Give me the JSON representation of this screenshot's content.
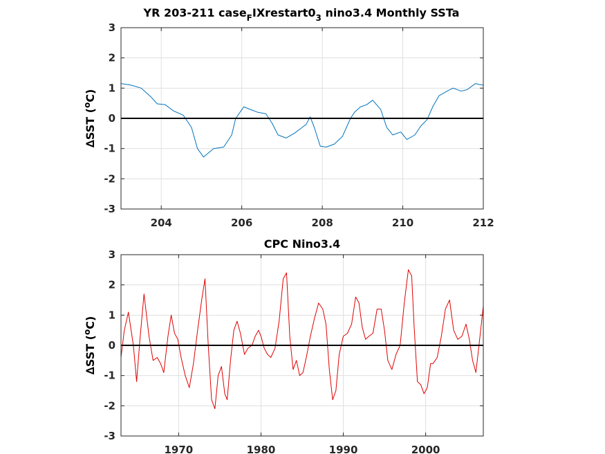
{
  "figure": {
    "background": "#ffffff",
    "axes_color": "#262626",
    "grid_color": "#dfdfdf",
    "zero_line_color": "#000000"
  },
  "chart_data": [
    {
      "type": "line",
      "title_parts": [
        "YR 203-211 case",
        "F",
        "IXrestart0",
        "3",
        " nino3.4 Monthly SSTa"
      ],
      "ylabel_symbol": "∆",
      "ylabel_text": "SST (",
      "ylabel_degree": "o",
      "ylabel_unit": "C)",
      "xlim": [
        203,
        212
      ],
      "ylim": [
        -3,
        3
      ],
      "xticks": [
        204,
        206,
        208,
        210,
        212
      ],
      "yticks": [
        -3,
        -2,
        -1,
        0,
        1,
        2,
        3
      ],
      "grid": true,
      "zero_line": true,
      "series": [
        {
          "color": "#0072bd",
          "x": [
            203.0,
            203.25,
            203.5,
            203.75,
            203.9,
            204.1,
            204.3,
            204.55,
            204.75,
            204.9,
            205.05,
            205.3,
            205.55,
            205.75,
            205.85,
            206.05,
            206.2,
            206.4,
            206.6,
            206.75,
            206.9,
            207.1,
            207.3,
            207.5,
            207.6,
            207.7,
            207.8,
            207.95,
            208.1,
            208.3,
            208.5,
            208.7,
            208.8,
            208.95,
            209.1,
            209.25,
            209.45,
            209.6,
            209.75,
            209.95,
            210.1,
            210.3,
            210.45,
            210.6,
            210.75,
            210.9,
            211.1,
            211.25,
            211.45,
            211.6,
            211.8,
            211.9,
            212.0
          ],
          "y": [
            1.15,
            1.1,
            1.0,
            0.7,
            0.48,
            0.45,
            0.25,
            0.1,
            -0.3,
            -1.0,
            -1.28,
            -1.0,
            -0.95,
            -0.55,
            0.0,
            0.38,
            0.3,
            0.2,
            0.15,
            -0.15,
            -0.55,
            -0.65,
            -0.5,
            -0.3,
            -0.2,
            0.05,
            -0.3,
            -0.92,
            -0.95,
            -0.85,
            -0.6,
            0.0,
            0.2,
            0.38,
            0.45,
            0.6,
            0.3,
            -0.3,
            -0.55,
            -0.45,
            -0.7,
            -0.55,
            -0.25,
            -0.05,
            0.4,
            0.75,
            0.9,
            1.0,
            0.9,
            0.95,
            1.15,
            1.12,
            1.1
          ]
        }
      ]
    },
    {
      "type": "line",
      "title": "CPC Nino3.4",
      "ylabel_symbol": "∆",
      "ylabel_text": "SST (",
      "ylabel_degree": "o",
      "ylabel_unit": "C)",
      "xlim": [
        1963,
        2007
      ],
      "ylim": [
        -3,
        3
      ],
      "xticks": [
        1970,
        1980,
        1990,
        2000
      ],
      "yticks": [
        -3,
        -2,
        -1,
        0,
        1,
        2,
        3
      ],
      "grid": true,
      "zero_line": true,
      "series": [
        {
          "color": "#e00000",
          "x": [
            1963.0,
            1963.4,
            1963.9,
            1964.5,
            1964.9,
            1965.3,
            1965.8,
            1966.4,
            1966.9,
            1967.4,
            1967.8,
            1968.2,
            1968.7,
            1969.1,
            1969.5,
            1969.9,
            1970.3,
            1970.8,
            1971.3,
            1971.8,
            1972.3,
            1972.8,
            1973.2,
            1973.6,
            1974.0,
            1974.4,
            1974.8,
            1975.2,
            1975.6,
            1975.9,
            1976.3,
            1976.7,
            1977.1,
            1977.5,
            1978.0,
            1978.4,
            1978.9,
            1979.3,
            1979.7,
            1980.0,
            1980.4,
            1980.8,
            1981.2,
            1981.7,
            1982.2,
            1982.7,
            1983.1,
            1983.5,
            1983.9,
            1984.3,
            1984.7,
            1985.1,
            1985.5,
            1986.0,
            1986.5,
            1987.0,
            1987.5,
            1987.9,
            1988.3,
            1988.7,
            1989.1,
            1989.5,
            1990.0,
            1990.5,
            1991.0,
            1991.5,
            1991.9,
            1992.3,
            1992.7,
            1993.1,
            1993.6,
            1994.1,
            1994.6,
            1995.0,
            1995.4,
            1995.9,
            1996.4,
            1996.9,
            1997.4,
            1997.9,
            1998.3,
            1998.6,
            1999.0,
            1999.4,
            1999.8,
            2000.2,
            2000.6,
            2000.9,
            2001.4,
            2001.9,
            2002.4,
            2002.9,
            2003.4,
            2003.9,
            2004.4,
            2004.9,
            2005.3,
            2005.7,
            2006.1,
            2006.6,
            2007.0
          ],
          "y": [
            -0.4,
            0.5,
            1.1,
            0.0,
            -1.2,
            0.2,
            1.7,
            0.3,
            -0.5,
            -0.4,
            -0.6,
            -0.9,
            0.3,
            1.0,
            0.4,
            0.2,
            -0.4,
            -1.0,
            -1.4,
            -0.6,
            0.5,
            1.5,
            2.2,
            0.0,
            -1.8,
            -2.1,
            -1.0,
            -0.7,
            -1.6,
            -1.8,
            -0.5,
            0.5,
            0.8,
            0.4,
            -0.3,
            -0.1,
            0.0,
            0.3,
            0.5,
            0.3,
            -0.1,
            -0.3,
            -0.4,
            -0.1,
            0.8,
            2.2,
            2.4,
            0.3,
            -0.8,
            -0.5,
            -1.0,
            -0.9,
            -0.4,
            0.3,
            0.9,
            1.4,
            1.2,
            0.7,
            -0.8,
            -1.8,
            -1.5,
            -0.3,
            0.3,
            0.4,
            0.7,
            1.6,
            1.4,
            0.6,
            0.2,
            0.3,
            0.4,
            1.2,
            1.2,
            0.5,
            -0.5,
            -0.8,
            -0.3,
            0.0,
            1.4,
            2.5,
            2.3,
            0.6,
            -1.2,
            -1.3,
            -1.6,
            -1.4,
            -0.6,
            -0.6,
            -0.4,
            0.3,
            1.2,
            1.5,
            0.5,
            0.2,
            0.3,
            0.7,
            0.2,
            -0.5,
            -0.9,
            0.3,
            1.3
          ]
        }
      ]
    }
  ]
}
